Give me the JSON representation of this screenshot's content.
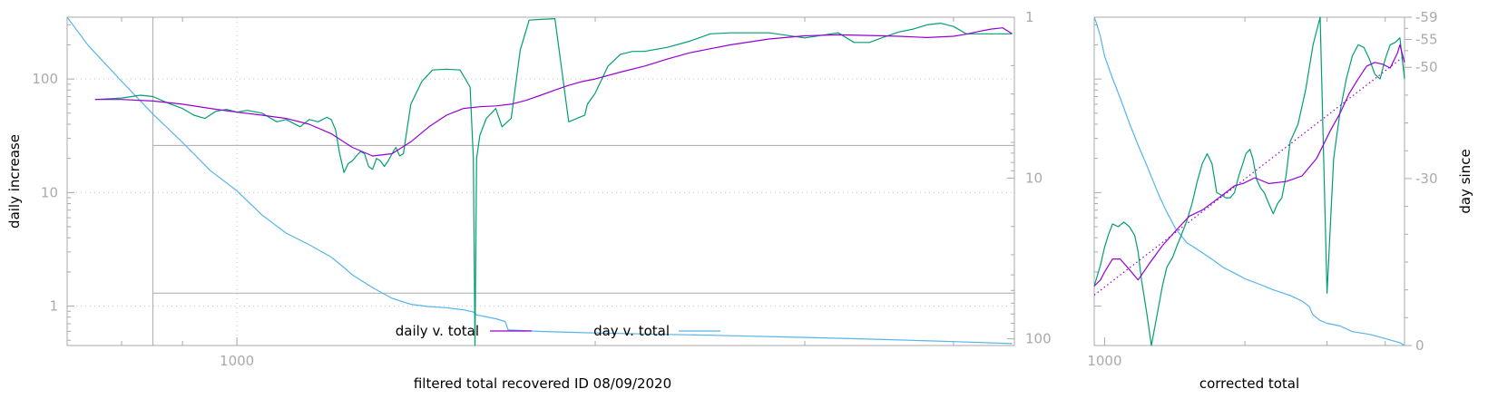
{
  "colors": {
    "daily": "#9400d3",
    "raw": "#009e73",
    "day": "#56b4e9",
    "fit": "#9400d3",
    "axis": "#aaaaaa"
  },
  "chart_data": [
    {
      "type": "line",
      "xlabel": "filtered total recovered ID 08/09/2020",
      "ylabel": "daily increase",
      "xscale": "log",
      "yscale": "log",
      "xlim": [
        720,
        4500
      ],
      "ylim": [
        0.45,
        350
      ],
      "y2scale": "log",
      "y2lim": [
        1,
        110
      ],
      "y2_reversed": true,
      "x_ticks": [
        {
          "v": 1000,
          "label": "1000"
        }
      ],
      "y_ticks": [
        {
          "v": 1,
          "label": "1"
        },
        {
          "v": 10,
          "label": "10"
        },
        {
          "v": 100,
          "label": "100"
        }
      ],
      "y2_ticks": [
        {
          "v": 1,
          "label": "1"
        },
        {
          "v": 10,
          "label": "10"
        },
        {
          "v": 100,
          "label": "100"
        }
      ],
      "grid": true,
      "legend_position": "bottom-center",
      "inset_box": {
        "x0": 850,
        "x1": 4500,
        "y_top": 26,
        "y_bottom": 1.3
      },
      "series": [
        {
          "name": "daily v. total",
          "key": "daily",
          "axis": "y",
          "x": [
            760,
            800,
            850,
            900,
            950,
            1000,
            1050,
            1100,
            1150,
            1200,
            1250,
            1300,
            1350,
            1400,
            1450,
            1500,
            1550,
            1600,
            1650,
            1700,
            1750,
            1800,
            1850,
            1900,
            1950,
            2000,
            2100,
            2200,
            2300,
            2400,
            2500,
            2600,
            2800,
            3000,
            3200,
            3400,
            3600,
            3800,
            4000,
            4100,
            4200,
            4300,
            4400,
            4480
          ],
          "y": [
            66,
            66,
            64,
            60,
            55,
            51,
            48,
            45,
            40,
            33,
            25,
            21,
            22,
            28,
            38,
            48,
            55,
            57,
            58,
            60,
            65,
            72,
            80,
            88,
            95,
            100,
            115,
            130,
            150,
            170,
            185,
            200,
            225,
            240,
            245,
            242,
            238,
            232,
            238,
            248,
            262,
            275,
            282,
            250
          ]
        },
        {
          "name": "",
          "key": "raw",
          "axis": "y",
          "x": [
            760,
            800,
            830,
            850,
            880,
            900,
            920,
            940,
            960,
            980,
            1000,
            1020,
            1050,
            1080,
            1100,
            1130,
            1150,
            1170,
            1190,
            1200,
            1210,
            1220,
            1230,
            1240,
            1250,
            1260,
            1270,
            1280,
            1290,
            1300,
            1310,
            1320,
            1330,
            1340,
            1350,
            1360,
            1370,
            1380,
            1400,
            1430,
            1460,
            1500,
            1540,
            1570,
            1580,
            1585,
            1590,
            1600,
            1620,
            1650,
            1670,
            1700,
            1730,
            1760,
            1800,
            1850,
            1900,
            1960,
            1970,
            2000,
            2050,
            2100,
            2150,
            2200,
            2300,
            2400,
            2500,
            2600,
            2800,
            3000,
            3200,
            3300,
            3400,
            3500,
            3600,
            3700,
            3800,
            3900,
            4000,
            4100,
            4200,
            4300,
            4400,
            4480
          ],
          "y": [
            66,
            68,
            72,
            70,
            60,
            55,
            48,
            45,
            52,
            54,
            51,
            53,
            50,
            42,
            44,
            38,
            44,
            42,
            46,
            44,
            36,
            22,
            15,
            18,
            19,
            21,
            23,
            22,
            17,
            16,
            20,
            19,
            17,
            19,
            22,
            25,
            21,
            22,
            60,
            95,
            120,
            122,
            120,
            85,
            20,
            0.45,
            20,
            32,
            45,
            55,
            38,
            45,
            180,
            330,
            335,
            340,
            42,
            48,
            60,
            75,
            130,
            165,
            175,
            175,
            190,
            215,
            250,
            255,
            255,
            230,
            255,
            210,
            210,
            235,
            260,
            275,
            300,
            310,
            290,
            250,
            250,
            250,
            250,
            250
          ]
        },
        {
          "name": "day v. total",
          "key": "day",
          "axis": "y2",
          "x": [
            720,
            750,
            800,
            850,
            900,
            950,
            1000,
            1050,
            1100,
            1150,
            1200,
            1230,
            1250,
            1300,
            1350,
            1400,
            1450,
            1500,
            1550,
            1580,
            1590,
            1620,
            1650,
            1680,
            1690,
            1750,
            1800,
            2000,
            2500,
            3000,
            3500,
            4000,
            4480
          ],
          "y2": [
            1,
            1.5,
            2.5,
            4,
            6,
            9,
            12,
            17,
            22,
            26,
            31,
            36,
            40,
            48,
            56,
            61,
            63,
            64,
            66,
            68,
            71,
            73,
            75,
            78,
            88,
            89,
            90,
            92,
            95,
            98,
            101,
            104,
            107
          ]
        }
      ]
    },
    {
      "type": "line",
      "xlabel": "corrected total",
      "ylabel": "day since",
      "xscale": "log",
      "yscale": "log",
      "xlim": [
        950,
        4400
      ],
      "ylim": [
        0.45,
        350
      ],
      "y2lim": [
        0,
        -59
      ],
      "x_ticks": [
        {
          "v": 1000,
          "label": "1000"
        }
      ],
      "y2_ticks": [
        {
          "v": -59,
          "label": "-59"
        },
        {
          "v": -55,
          "label": "-55"
        },
        {
          "v": -50,
          "label": "-50"
        },
        {
          "v": -30,
          "label": "-30"
        },
        {
          "v": 0,
          "label": "0"
        }
      ],
      "grid": false,
      "series": [
        {
          "key": "daily",
          "axis": "y",
          "x": [
            950,
            980,
            1000,
            1040,
            1080,
            1130,
            1180,
            1250,
            1330,
            1420,
            1520,
            1620,
            1720,
            1820,
            1900,
            1980,
            2100,
            2250,
            2450,
            2650,
            2850,
            3050,
            3200,
            3350,
            3500,
            3650,
            3800,
            3950,
            4100,
            4250,
            4300,
            4400
          ],
          "y": [
            1.5,
            1.7,
            2.0,
            2.6,
            2.6,
            2.1,
            1.7,
            2.4,
            3.4,
            4.6,
            6.2,
            7.0,
            8.4,
            10,
            11.5,
            12,
            13.5,
            12.0,
            12.5,
            14,
            20,
            35,
            50,
            75,
            100,
            130,
            140,
            135,
            125,
            170,
            200,
            140
          ]
        },
        {
          "key": "raw",
          "axis": "y",
          "x": [
            950,
            980,
            1000,
            1020,
            1040,
            1070,
            1100,
            1130,
            1160,
            1180,
            1200,
            1230,
            1260,
            1300,
            1330,
            1360,
            1400,
            1430,
            1460,
            1500,
            1540,
            1580,
            1620,
            1660,
            1700,
            1740,
            1780,
            1820,
            1860,
            1900,
            1940,
            1980,
            2010,
            2050,
            2080,
            2120,
            2160,
            2200,
            2250,
            2300,
            2350,
            2400,
            2450,
            2500,
            2600,
            2700,
            2800,
            2900,
            3000,
            3100,
            3200,
            3300,
            3400,
            3500,
            3600,
            3700,
            3800,
            3900,
            4000,
            4100,
            4200,
            4300,
            4400
          ],
          "y": [
            1.5,
            2.3,
            3.3,
            4.3,
            5.3,
            5.0,
            5.5,
            5.0,
            4.2,
            3.0,
            1.7,
            0.9,
            0.45,
            0.9,
            1.5,
            2.2,
            2.7,
            3.4,
            4.2,
            5.6,
            8.0,
            12.5,
            18,
            22,
            18,
            10,
            9.5,
            9.0,
            9.0,
            10,
            14,
            18,
            22,
            24,
            20,
            13,
            11,
            10,
            8,
            6.5,
            8,
            9,
            14,
            28,
            40,
            80,
            200,
            350,
            1.3,
            20,
            52,
            100,
            160,
            200,
            190,
            150,
            110,
            100,
            150,
            200,
            210,
            230,
            100
          ]
        },
        {
          "key": "fit",
          "axis": "y",
          "style": "dotted",
          "x": [
            950,
            4400
          ],
          "y": [
            1.25,
            160
          ]
        },
        {
          "key": "day",
          "axis": "y2",
          "x": [
            950,
            960,
            980,
            1000,
            1040,
            1080,
            1130,
            1180,
            1230,
            1300,
            1350,
            1420,
            1500,
            1600,
            1700,
            1800,
            1900,
            2000,
            2150,
            2300,
            2500,
            2650,
            2750,
            2780,
            2800,
            2850,
            2900,
            3000,
            3200,
            3400,
            3700,
            3900,
            4100,
            4300,
            4400
          ],
          "y2": [
            -59,
            -58,
            -55.5,
            -52,
            -48,
            -44.5,
            -40,
            -36,
            -32.5,
            -27.5,
            -24.5,
            -21,
            -18.5,
            -17,
            -15.5,
            -14,
            -13,
            -12,
            -11,
            -10,
            -9,
            -8,
            -7,
            -6,
            -5.5,
            -5,
            -4.5,
            -4,
            -3.5,
            -2.5,
            -2,
            -1.5,
            -1,
            -0.5,
            0
          ]
        }
      ]
    }
  ],
  "legend": {
    "daily": "daily v. total",
    "day": "day v. total"
  }
}
